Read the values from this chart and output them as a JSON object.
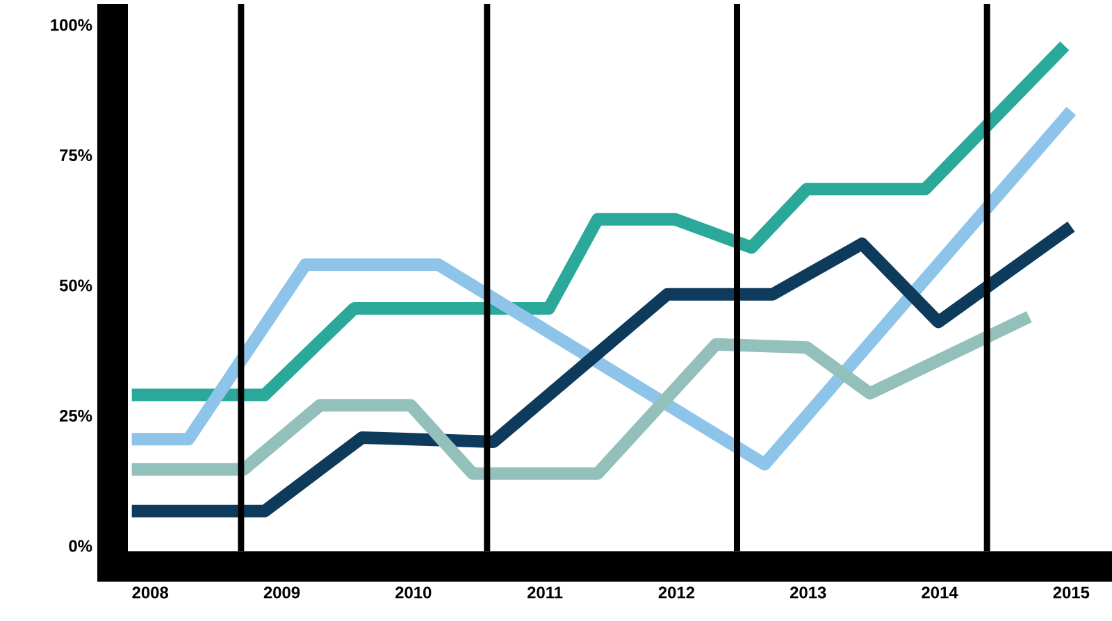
{
  "chart_data": {
    "type": "line",
    "xlim": [
      2007.83,
      2015.31
    ],
    "ylim": [
      -1,
      104
    ],
    "xticks": [
      2008,
      2009,
      2010,
      2011,
      2012,
      2013,
      2014,
      2015
    ],
    "yticks": [
      {
        "value": 0,
        "label": "0%"
      },
      {
        "value": 25,
        "label": "25%"
      },
      {
        "value": 50,
        "label": "50%"
      },
      {
        "value": 75,
        "label": "75%"
      },
      {
        "value": 100,
        "label": "100%"
      }
    ],
    "grid": false,
    "marker": "none",
    "line_style": "solid",
    "series": [
      {
        "color": "#2aa89a",
        "x": [
          2007.86,
          2008.87,
          2009.55,
          2011.03,
          2011.4,
          2011.99,
          2012.57,
          2012.99,
          2013.89,
          2014.95
        ],
        "values": [
          29,
          29,
          45.6,
          45.6,
          62.7,
          62.7,
          57.3,
          68.5,
          68.5,
          96
        ]
      },
      {
        "color": "#8ec3ea",
        "x": [
          2007.86,
          2008.29,
          2009.18,
          2010.19,
          2012.67,
          2015.0
        ],
        "values": [
          20.5,
          20.5,
          54,
          54,
          15.7,
          83.5
        ]
      },
      {
        "color": "#0e3a5c",
        "x": [
          2007.86,
          2008.87,
          2009.61,
          2010.61,
          2011.93,
          2012.73,
          2013.41,
          2013.99,
          2015.0
        ],
        "values": [
          6.7,
          6.7,
          20.8,
          20,
          48.3,
          48.3,
          58,
          43,
          61.3
        ]
      },
      {
        "color": "#93c0bb",
        "x": [
          2007.86,
          2008.71,
          2009.29,
          2009.98,
          2010.45,
          2011.4,
          2012.3,
          2012.99,
          2013.47,
          2014.68
        ],
        "values": [
          14.7,
          14.7,
          27,
          27,
          13.9,
          13.9,
          38.7,
          38.1,
          29.3,
          44
        ]
      }
    ],
    "ref_lines": [
      {
        "axis": "x",
        "value": 2008.69,
        "color": "#000000"
      },
      {
        "axis": "x",
        "value": 2010.56,
        "color": "#000000"
      },
      {
        "axis": "x",
        "value": 2012.46,
        "color": "#000000"
      },
      {
        "axis": "x",
        "value": 2014.36,
        "color": "#000000"
      }
    ]
  }
}
